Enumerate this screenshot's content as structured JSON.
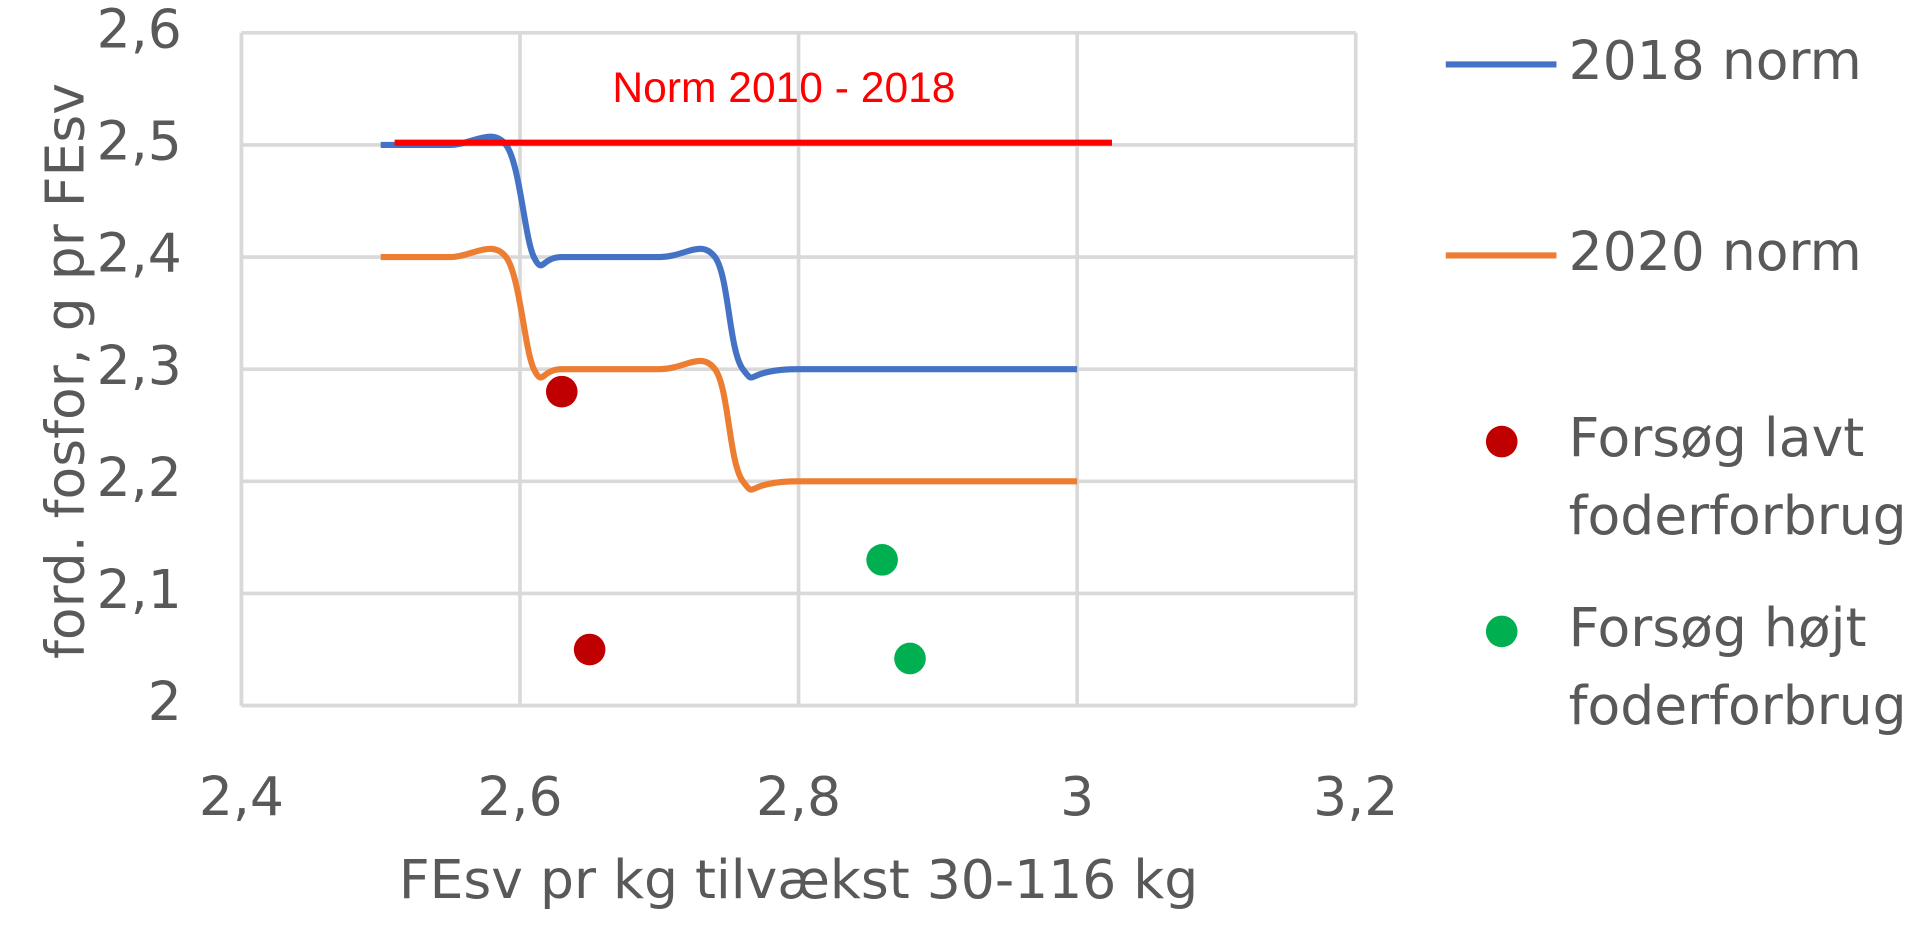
{
  "chart_data": {
    "type": "scatter",
    "xlabel": "FEsv pr kg tilvækst 30-116 kg",
    "ylabel": "ford. fosfor, g pr FEsv",
    "xlim": [
      2.4,
      3.2
    ],
    "xticks": [
      {
        "value": 2.4,
        "label": "2,4"
      },
      {
        "value": 2.6,
        "label": "2,6"
      },
      {
        "value": 2.8,
        "label": "2,8"
      },
      3,
      {
        "value": 3.2,
        "label": "3,2"
      }
    ],
    "ylim": [
      2,
      2.6
    ],
    "yticks": [
      2,
      {
        "value": 2.1,
        "label": "2,1"
      },
      {
        "value": 2.2,
        "label": "2,2"
      },
      {
        "value": 2.3,
        "label": "2,3"
      },
      {
        "value": 2.4,
        "label": "2,4"
      },
      {
        "value": 2.5,
        "label": "2,5"
      },
      {
        "value": 2.6,
        "label": "2,6"
      }
    ],
    "grid": true,
    "legend": "right",
    "annotation": "Norm 2010 - 2018",
    "series": [
      {
        "name": "2018 norm",
        "color": "#4472c4",
        "mode": "smooth-line",
        "x": [
          2.5,
          2.55,
          2.59,
          2.61,
          2.63,
          2.7,
          2.74,
          2.76,
          2.8,
          3.0
        ],
        "values": [
          2.5,
          2.5,
          2.5,
          2.4,
          2.4,
          2.4,
          2.4,
          2.3,
          2.3,
          2.3
        ]
      },
      {
        "name": "2020 norm",
        "color": "#ed7d31",
        "mode": "smooth-line",
        "x": [
          2.5,
          2.55,
          2.59,
          2.61,
          2.63,
          2.7,
          2.74,
          2.76,
          2.8,
          3.0
        ],
        "values": [
          2.4,
          2.4,
          2.4,
          2.3,
          2.3,
          2.3,
          2.3,
          2.2,
          2.2,
          2.2
        ]
      },
      {
        "color": "#ff0000",
        "mode": "line",
        "x": [
          2.51,
          3.025
        ],
        "values": [
          2.502,
          2.502
        ]
      },
      {
        "name": "Forsøg lavt foderforbrug",
        "color": "#c00000",
        "mode": "markers",
        "x": [
          2.63,
          2.65
        ],
        "values": [
          2.28,
          2.05
        ]
      },
      {
        "name": "Forsøg højt foderforbrug",
        "color": "#00b050",
        "mode": "markers",
        "x": [
          2.86,
          2.88
        ],
        "values": [
          2.13,
          2.042
        ]
      }
    ]
  }
}
